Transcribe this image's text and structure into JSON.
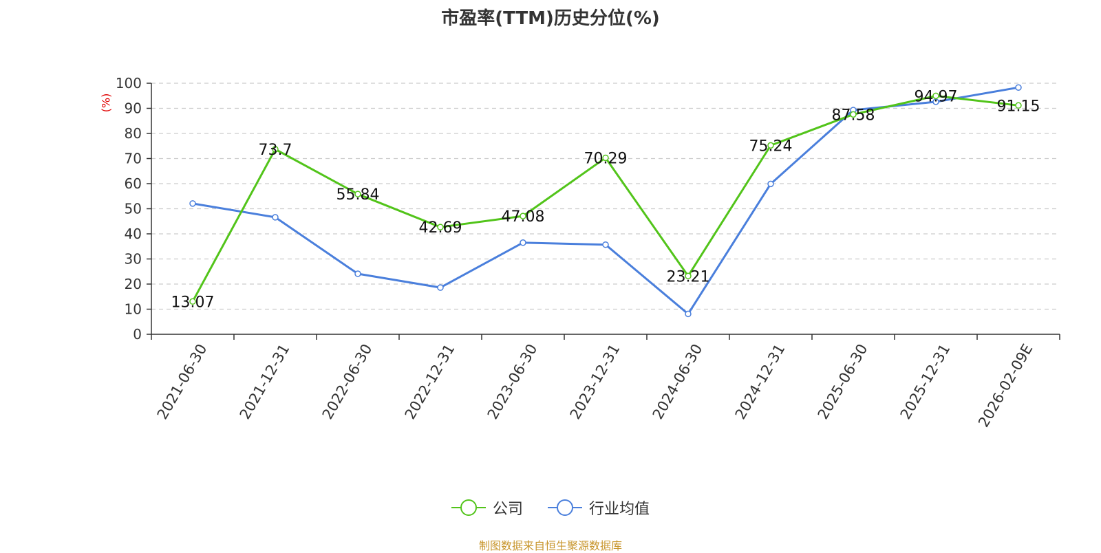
{
  "chart_data": {
    "type": "line",
    "title": "市盈率(TTM)历史分位(%)",
    "ylabel": "(%)",
    "ylim": [
      0,
      100
    ],
    "yticks": [
      0,
      10,
      20,
      30,
      40,
      50,
      60,
      70,
      80,
      90,
      100
    ],
    "categories": [
      "2021-06-30",
      "2021-12-31",
      "2022-06-30",
      "2022-12-31",
      "2023-06-30",
      "2023-12-31",
      "2024-06-30",
      "2024-12-31",
      "2025-06-30",
      "2025-12-31",
      "2026-02-09E"
    ],
    "grid": true,
    "legend_position": "bottom",
    "series": [
      {
        "name": "公司",
        "color": "#52c41a",
        "values": [
          13.07,
          73.7,
          55.84,
          42.69,
          47.08,
          70.29,
          23.21,
          75.24,
          87.58,
          94.97,
          91.15
        ],
        "labels": [
          "13.07",
          "73.7",
          "55.84",
          "42.69",
          "47.08",
          "70.29",
          "23.21",
          "75.24",
          "87.58",
          "94.97",
          "91.15"
        ]
      },
      {
        "name": "行业均值",
        "color": "#4a7fdc",
        "values": [
          52.1,
          46.6,
          24.1,
          18.6,
          36.5,
          35.7,
          8.1,
          59.9,
          89.3,
          92.6,
          98.3
        ]
      }
    ]
  },
  "source": "制图数据来自恒生聚源数据库"
}
